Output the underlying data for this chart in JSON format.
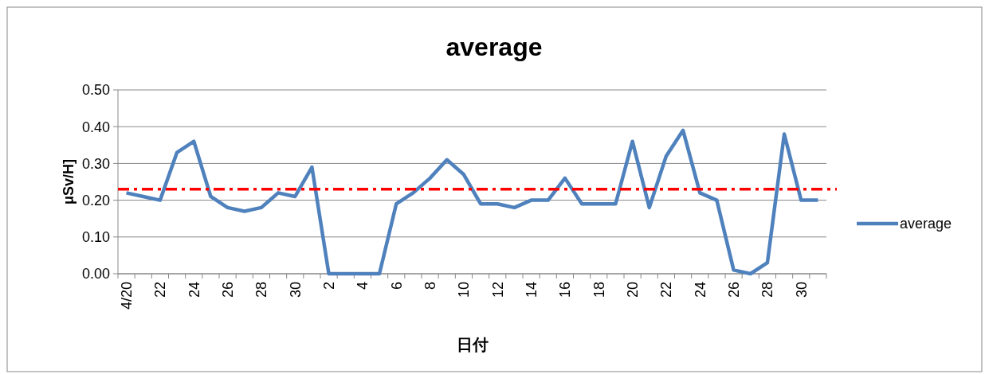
{
  "chart_data": {
    "type": "line",
    "title": "average",
    "xlabel": "日付",
    "ylabel": "μSv/H]",
    "categories": [
      "4/20",
      null,
      "22",
      null,
      "24",
      null,
      "26",
      null,
      "28",
      null,
      "30",
      null,
      "2",
      null,
      "4",
      null,
      "6",
      null,
      "8",
      null,
      "10",
      null,
      "12",
      null,
      "14",
      null,
      "16",
      null,
      "18",
      null,
      "20",
      null,
      "22",
      null,
      "24",
      null,
      "26",
      null,
      "28",
      null,
      "30",
      null
    ],
    "series": [
      {
        "name": "average",
        "color": "#4f81bd",
        "values": [
          0.22,
          0.21,
          0.2,
          0.33,
          0.36,
          0.21,
          0.18,
          0.17,
          0.18,
          0.22,
          0.21,
          0.29,
          0,
          0,
          0,
          0,
          0.19,
          0.22,
          0.26,
          0.31,
          0.27,
          0.19,
          0.19,
          0.18,
          0.2,
          0.2,
          0.26,
          0.19,
          0.19,
          0.19,
          0.36,
          0.18,
          0.32,
          0.39,
          0.22,
          0.2,
          0.01,
          0,
          0.03,
          0.38,
          0.2,
          0.2
        ]
      }
    ],
    "ylim": [
      0,
      0.5
    ],
    "yticks": [
      {
        "value": 0,
        "label": "0.00"
      },
      {
        "value": 0.1,
        "label": "0.10"
      },
      {
        "value": 0.2,
        "label": "0.20"
      },
      {
        "value": 0.3,
        "label": "0.30"
      },
      {
        "value": 0.4,
        "label": "0.40"
      },
      {
        "value": 0.5,
        "label": "0.50"
      }
    ],
    "ref_lines": [
      {
        "axis": "y",
        "value": 0.23,
        "color": "#ff0000",
        "line_style": "dashdot"
      }
    ],
    "grid": "y",
    "legend": "right",
    "marker": "none",
    "line_style": "solid"
  }
}
